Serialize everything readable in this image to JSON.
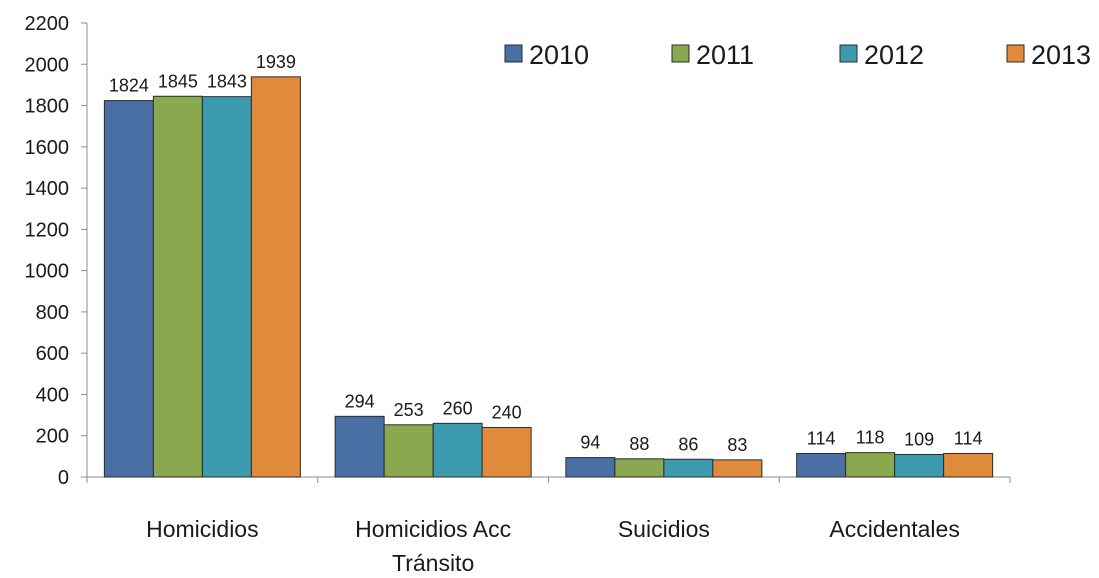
{
  "chart_data": {
    "type": "bar",
    "title": "",
    "xlabel": "",
    "ylabel": "",
    "categories": [
      [
        "Homicidios"
      ],
      [
        "Homicidios Acc",
        "Tránsito"
      ],
      [
        "Suicidios"
      ],
      [
        "Accidentales"
      ]
    ],
    "series": [
      {
        "name": "2010",
        "color": "#4A6FA5",
        "values": [
          1824,
          294,
          94,
          114
        ]
      },
      {
        "name": "2011",
        "color": "#8AA84D",
        "values": [
          1845,
          253,
          88,
          118
        ]
      },
      {
        "name": "2012",
        "color": "#3D9BB0",
        "values": [
          1843,
          260,
          86,
          109
        ]
      },
      {
        "name": "2013",
        "color": "#E08A3C",
        "values": [
          1939,
          240,
          83,
          114
        ]
      }
    ],
    "ylim": [
      0,
      2200
    ],
    "yticks": [
      0,
      200,
      400,
      600,
      800,
      1000,
      1200,
      1400,
      1600,
      1800,
      2000,
      2200
    ],
    "grid": false,
    "legend_position": "top-right",
    "data_labels": true
  }
}
